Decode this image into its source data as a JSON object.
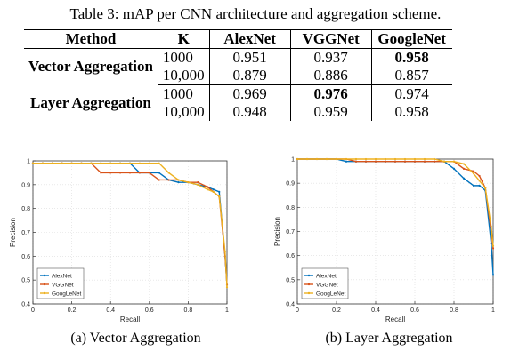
{
  "table": {
    "caption": "Table 3: mAP per CNN architecture and aggregation scheme.",
    "headers": [
      "Method",
      "K",
      "AlexNet",
      "VGGNet",
      "GoogleNet"
    ],
    "groups": [
      {
        "method": "Vector Aggregation",
        "rows": [
          {
            "k": "1000",
            "values": [
              "0.951",
              "0.937",
              "0.958"
            ],
            "bold": 2
          },
          {
            "k": "10,000",
            "values": [
              "0.879",
              "0.886",
              "0.857"
            ],
            "bold": -1
          }
        ]
      },
      {
        "method": "Layer Aggregation",
        "rows": [
          {
            "k": "1000",
            "values": [
              "0.969",
              "0.976",
              "0.974"
            ],
            "bold": 1
          },
          {
            "k": "10,000",
            "values": [
              "0.948",
              "0.959",
              "0.958"
            ],
            "bold": -1
          }
        ]
      }
    ]
  },
  "chart_data": [
    {
      "type": "line",
      "caption": "(a) Vector Aggregation",
      "xlabel": "Recall",
      "ylabel": "Precision",
      "xlim": [
        0,
        1
      ],
      "ylim": [
        0.4,
        1
      ],
      "xticks": [
        "0",
        "0.2",
        "0.4",
        "0.6",
        "0.8",
        "1"
      ],
      "yticks": [
        "0.4",
        "0.5",
        "0.6",
        "0.7",
        "0.8",
        "0.9",
        "1"
      ],
      "grid": true,
      "legend": "bottom-left",
      "series": [
        {
          "name": "AlexNet",
          "color": "#0072BD",
          "x": [
            0,
            0.05,
            0.1,
            0.15,
            0.2,
            0.25,
            0.3,
            0.35,
            0.4,
            0.45,
            0.5,
            0.55,
            0.6,
            0.65,
            0.7,
            0.75,
            0.8,
            0.85,
            0.9,
            0.93,
            0.96,
            0.99,
            1.0
          ],
          "y": [
            0.99,
            0.99,
            0.99,
            0.99,
            0.99,
            0.99,
            0.99,
            0.99,
            0.99,
            0.99,
            0.99,
            0.95,
            0.95,
            0.95,
            0.92,
            0.91,
            0.91,
            0.9,
            0.89,
            0.88,
            0.87,
            0.6,
            0.48
          ]
        },
        {
          "name": "VGGNet",
          "color": "#D95319",
          "x": [
            0,
            0.05,
            0.1,
            0.15,
            0.2,
            0.25,
            0.3,
            0.35,
            0.4,
            0.45,
            0.5,
            0.55,
            0.6,
            0.65,
            0.7,
            0.75,
            0.8,
            0.85,
            0.9,
            0.93,
            0.96,
            0.99,
            1.0
          ],
          "y": [
            0.99,
            0.99,
            0.99,
            0.99,
            0.99,
            0.99,
            0.99,
            0.95,
            0.95,
            0.95,
            0.95,
            0.95,
            0.95,
            0.92,
            0.92,
            0.92,
            0.91,
            0.91,
            0.89,
            0.87,
            0.85,
            0.6,
            0.48
          ]
        },
        {
          "name": "GoogLeNet",
          "color": "#EDB120",
          "x": [
            0,
            0.05,
            0.1,
            0.15,
            0.2,
            0.25,
            0.3,
            0.35,
            0.4,
            0.45,
            0.5,
            0.55,
            0.6,
            0.65,
            0.7,
            0.75,
            0.8,
            0.85,
            0.9,
            0.93,
            0.96,
            0.99,
            1.0
          ],
          "y": [
            0.99,
            0.99,
            0.99,
            0.99,
            0.99,
            0.99,
            0.99,
            0.99,
            0.99,
            0.99,
            0.99,
            0.99,
            0.99,
            0.99,
            0.95,
            0.92,
            0.91,
            0.9,
            0.88,
            0.87,
            0.85,
            0.62,
            0.47
          ]
        }
      ]
    },
    {
      "type": "line",
      "caption": "(b) Layer Aggregation",
      "xlabel": "Recall",
      "ylabel": "Precision",
      "xlim": [
        0,
        1
      ],
      "ylim": [
        0.4,
        1
      ],
      "xticks": [
        "0",
        "0.2",
        "0.4",
        "0.6",
        "0.8",
        "1"
      ],
      "yticks": [
        "0.4",
        "0.5",
        "0.6",
        "0.7",
        "0.8",
        "0.9",
        "1"
      ],
      "grid": true,
      "legend": "bottom-left",
      "series": [
        {
          "name": "AlexNet",
          "color": "#0072BD",
          "x": [
            0,
            0.05,
            0.1,
            0.15,
            0.2,
            0.25,
            0.3,
            0.35,
            0.4,
            0.45,
            0.5,
            0.55,
            0.6,
            0.65,
            0.7,
            0.75,
            0.8,
            0.85,
            0.9,
            0.93,
            0.96,
            0.99,
            1.0
          ],
          "y": [
            1.0,
            1.0,
            1.0,
            1.0,
            1.0,
            0.99,
            0.99,
            0.99,
            0.99,
            0.99,
            0.99,
            0.99,
            0.99,
            0.99,
            0.99,
            0.99,
            0.96,
            0.92,
            0.89,
            0.89,
            0.87,
            0.65,
            0.52
          ]
        },
        {
          "name": "VGGNet",
          "color": "#D95319",
          "x": [
            0,
            0.05,
            0.1,
            0.15,
            0.2,
            0.25,
            0.3,
            0.35,
            0.4,
            0.45,
            0.5,
            0.55,
            0.6,
            0.65,
            0.7,
            0.75,
            0.8,
            0.85,
            0.9,
            0.93,
            0.96,
            0.99,
            1.0
          ],
          "y": [
            1.0,
            1.0,
            1.0,
            1.0,
            1.0,
            1.0,
            0.99,
            0.99,
            0.99,
            0.99,
            0.99,
            0.99,
            0.99,
            0.99,
            0.99,
            0.99,
            0.99,
            0.96,
            0.95,
            0.93,
            0.88,
            0.7,
            0.63
          ]
        },
        {
          "name": "GoogLeNet",
          "color": "#EDB120",
          "x": [
            0,
            0.05,
            0.1,
            0.15,
            0.2,
            0.25,
            0.3,
            0.35,
            0.4,
            0.45,
            0.5,
            0.55,
            0.6,
            0.65,
            0.7,
            0.75,
            0.8,
            0.85,
            0.9,
            0.93,
            0.96,
            0.99,
            1.0
          ],
          "y": [
            1.0,
            1.0,
            1.0,
            1.0,
            1.0,
            1.0,
            1.0,
            1.0,
            1.0,
            1.0,
            1.0,
            1.0,
            1.0,
            1.0,
            1.0,
            0.99,
            0.99,
            0.98,
            0.94,
            0.91,
            0.88,
            0.72,
            0.64
          ]
        }
      ]
    }
  ]
}
